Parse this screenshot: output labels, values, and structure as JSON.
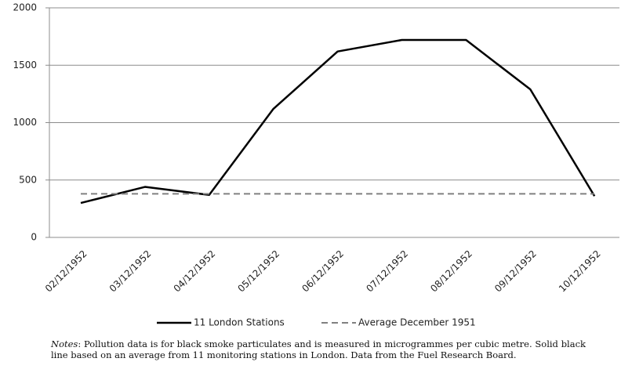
{
  "chart_data": {
    "type": "line",
    "categories": [
      "02/12/1952",
      "03/12/1952",
      "04/12/1952",
      "05/12/1952",
      "06/12/1952",
      "07/12/1952",
      "08/12/1952",
      "09/12/1952",
      "10/12/1952"
    ],
    "series": [
      {
        "name": "11 London Stations",
        "color": "#000000",
        "dash": false,
        "values": [
          300,
          440,
          370,
          1120,
          1620,
          1720,
          1720,
          1290,
          360
        ]
      },
      {
        "name": "Average December 1951",
        "color": "#808080",
        "dash": true,
        "values": [
          380,
          380,
          380,
          380,
          380,
          380,
          380,
          380,
          380
        ]
      }
    ],
    "ylim": [
      0,
      2000
    ],
    "yticks": [
      0,
      500,
      1000,
      1500,
      2000
    ],
    "grid": true
  },
  "notes": {
    "label": "Notes",
    "text": ": Pollution data is for black smoke particulates and is measured in microgrammes per cubic metre. Solid black line based on an average from 11 monitoring stations in London. Data from the Fuel Research Board."
  }
}
